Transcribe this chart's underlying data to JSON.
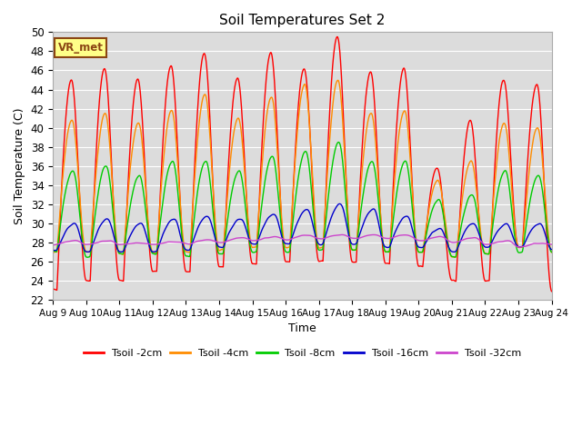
{
  "title": "Soil Temperatures Set 2",
  "xlabel": "Time",
  "ylabel": "Soil Temperature (C)",
  "ylim": [
    22,
    50
  ],
  "n_days": 15,
  "x_tick_labels": [
    "Aug 9",
    "Aug 10",
    "Aug 11",
    "Aug 12",
    "Aug 13",
    "Aug 14",
    "Aug 15",
    "Aug 16",
    "Aug 17",
    "Aug 18",
    "Aug 19",
    "Aug 20",
    "Aug 21",
    "Aug 22",
    "Aug 23",
    "Aug 24"
  ],
  "annotation": "VR_met",
  "background_color": "#dcdcdc",
  "figure_color": "#ffffff",
  "grid_color": "#ffffff",
  "series": [
    {
      "label": "Tsoil -2cm",
      "color": "#ff0000"
    },
    {
      "label": "Tsoil -4cm",
      "color": "#ff8c00"
    },
    {
      "label": "Tsoil -8cm",
      "color": "#00cc00"
    },
    {
      "label": "Tsoil -16cm",
      "color": "#0000cc"
    },
    {
      "label": "Tsoil -32cm",
      "color": "#cc44cc"
    }
  ],
  "day_peaks_2cm": [
    45.0,
    46.2,
    45.1,
    46.5,
    47.8,
    45.2,
    47.8,
    46.2,
    49.5,
    45.8,
    46.2,
    35.8,
    40.8,
    45.0,
    44.5
  ],
  "day_peaks_4cm": [
    40.8,
    41.5,
    40.5,
    41.8,
    43.5,
    41.0,
    43.2,
    44.5,
    45.0,
    41.5,
    41.8,
    34.5,
    36.5,
    40.5,
    40.0
  ],
  "day_peaks_8cm": [
    35.5,
    36.0,
    35.0,
    36.5,
    36.5,
    35.5,
    37.0,
    37.5,
    38.5,
    36.5,
    36.5,
    32.5,
    33.0,
    35.5,
    35.0
  ],
  "day_peaks_16cm": [
    30.0,
    30.5,
    30.0,
    30.5,
    30.8,
    30.5,
    31.0,
    31.5,
    32.0,
    31.5,
    30.8,
    29.5,
    30.0,
    30.0,
    30.0
  ],
  "day_peaks_32cm": [
    28.2,
    28.2,
    28.0,
    28.1,
    28.3,
    28.5,
    28.6,
    28.8,
    28.8,
    28.8,
    28.8,
    28.6,
    28.5,
    28.2,
    27.9
  ],
  "day_mins_2cm": [
    23.0,
    24.0,
    24.0,
    25.0,
    25.0,
    25.5,
    25.8,
    26.0,
    26.0,
    26.0,
    25.8,
    25.5,
    24.0,
    24.0,
    27.5
  ],
  "day_mins_4cm": [
    27.0,
    27.0,
    26.8,
    27.0,
    27.0,
    27.2,
    27.5,
    27.5,
    27.5,
    27.2,
    27.0,
    27.0,
    26.5,
    26.8,
    27.5
  ],
  "day_mins_8cm": [
    27.0,
    26.5,
    26.8,
    26.8,
    26.5,
    26.8,
    27.0,
    27.0,
    27.2,
    27.2,
    27.0,
    27.0,
    26.5,
    26.8,
    27.0
  ],
  "day_mins_16cm": [
    27.2,
    27.0,
    27.0,
    27.0,
    27.2,
    27.5,
    27.8,
    27.8,
    27.8,
    27.8,
    27.5,
    27.5,
    27.0,
    27.5,
    27.5
  ],
  "day_mins_32cm": [
    27.8,
    27.8,
    27.8,
    27.8,
    27.9,
    28.0,
    28.2,
    28.3,
    28.4,
    28.4,
    28.4,
    28.2,
    28.0,
    27.8,
    27.5
  ]
}
